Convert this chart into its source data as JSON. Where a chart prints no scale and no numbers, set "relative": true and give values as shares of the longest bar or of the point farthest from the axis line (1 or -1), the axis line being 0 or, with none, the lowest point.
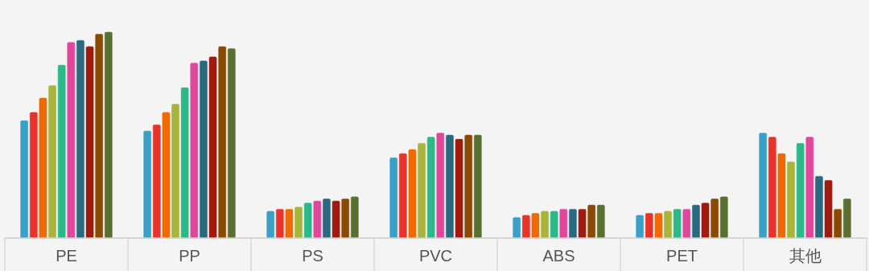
{
  "chart_data": {
    "type": "bar",
    "relative": true,
    "categories": [
      "PE",
      "PP",
      "PS",
      "PVC",
      "ABS",
      "PET",
      "其他"
    ],
    "series": [
      {
        "color": "#3aa0c8",
        "values": [
          0.57,
          0.52,
          0.13,
          0.39,
          0.1,
          0.11,
          0.51
        ]
      },
      {
        "color": "#e8322a",
        "values": [
          0.61,
          0.55,
          0.14,
          0.41,
          0.11,
          0.12,
          0.49
        ]
      },
      {
        "color": "#f06a00",
        "values": [
          0.68,
          0.61,
          0.14,
          0.43,
          0.12,
          0.12,
          0.41
        ]
      },
      {
        "color": "#a8b43a",
        "values": [
          0.74,
          0.65,
          0.15,
          0.46,
          0.13,
          0.13,
          0.37
        ]
      },
      {
        "color": "#2db88a",
        "values": [
          0.84,
          0.73,
          0.17,
          0.49,
          0.13,
          0.14,
          0.46
        ]
      },
      {
        "color": "#e0479a",
        "values": [
          0.95,
          0.85,
          0.18,
          0.51,
          0.14,
          0.14,
          0.49
        ]
      },
      {
        "color": "#2a6a80",
        "values": [
          0.96,
          0.86,
          0.19,
          0.5,
          0.14,
          0.16,
          0.3
        ]
      },
      {
        "color": "#a01a10",
        "values": [
          0.93,
          0.88,
          0.18,
          0.48,
          0.14,
          0.17,
          0.28
        ]
      },
      {
        "color": "#8a4a00",
        "values": [
          0.99,
          0.93,
          0.19,
          0.5,
          0.16,
          0.19,
          0.14
        ]
      },
      {
        "color": "#5a7030",
        "values": [
          1,
          0.92,
          0.2,
          0.5,
          0.16,
          0.2,
          0.19
        ]
      }
    ]
  }
}
